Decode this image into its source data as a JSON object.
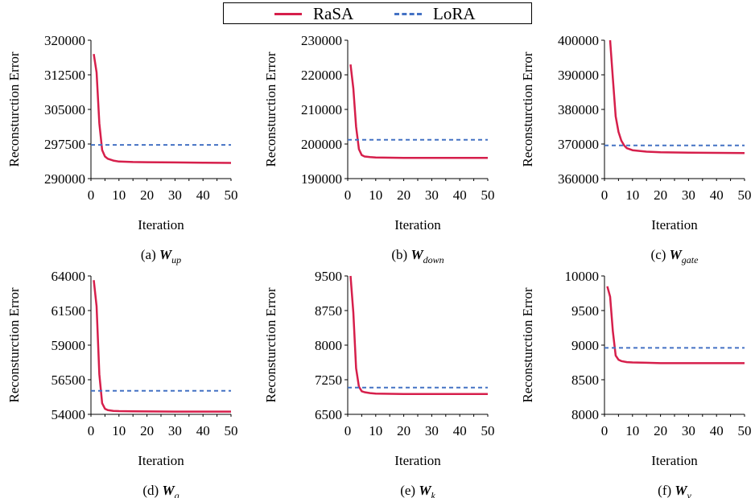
{
  "legend": {
    "items": [
      {
        "label": "RaSA",
        "color": "#d61f4b",
        "style": "solid"
      },
      {
        "label": "LoRA",
        "color": "#4472c4",
        "style": "dashed"
      }
    ]
  },
  "chart_data": [
    {
      "type": "line",
      "caption": {
        "prefix": "(a)",
        "symbol": "W",
        "subscript": "up"
      },
      "xlabel": "Iteration",
      "ylabel": "Reconsturction Error",
      "xlim": [
        0,
        50
      ],
      "ylim": [
        290000,
        320000
      ],
      "xticks": [
        0,
        10,
        20,
        30,
        40,
        50
      ],
      "yticks": [
        290000,
        297500,
        305000,
        312500,
        320000
      ],
      "series": [
        {
          "name": "RaSA",
          "x": [
            1,
            2,
            3,
            4,
            5,
            6,
            8,
            10,
            15,
            20,
            30,
            40,
            50
          ],
          "y": [
            317000,
            313000,
            302000,
            296200,
            294800,
            294300,
            293900,
            293700,
            293600,
            293550,
            293500,
            293450,
            293400
          ]
        },
        {
          "name": "LoRA",
          "x": [
            0,
            50
          ],
          "y": [
            297300,
            297300
          ]
        }
      ]
    },
    {
      "type": "line",
      "caption": {
        "prefix": "(b)",
        "symbol": "W",
        "subscript": "down"
      },
      "xlabel": "Iteration",
      "ylabel": "Reconsturction Error",
      "xlim": [
        0,
        50
      ],
      "ylim": [
        190000,
        230000
      ],
      "xticks": [
        0,
        10,
        20,
        30,
        40,
        50
      ],
      "yticks": [
        190000,
        200000,
        210000,
        220000,
        230000
      ],
      "series": [
        {
          "name": "RaSA",
          "x": [
            1,
            2,
            3,
            4,
            5,
            6,
            8,
            10,
            15,
            20,
            30,
            40,
            50
          ],
          "y": [
            223000,
            216000,
            205000,
            198500,
            196800,
            196400,
            196200,
            196100,
            196050,
            196000,
            196000,
            196000,
            196000
          ]
        },
        {
          "name": "LoRA",
          "x": [
            0,
            50
          ],
          "y": [
            201200,
            201200
          ]
        }
      ]
    },
    {
      "type": "line",
      "caption": {
        "prefix": "(c)",
        "symbol": "W",
        "subscript": "gate"
      },
      "xlabel": "Iteration",
      "ylabel": "Reconsturction Error",
      "xlim": [
        0,
        50
      ],
      "ylim": [
        360000,
        400000
      ],
      "xticks": [
        0,
        10,
        20,
        30,
        40,
        50
      ],
      "yticks": [
        360000,
        370000,
        380000,
        390000,
        400000
      ],
      "series": [
        {
          "name": "RaSA",
          "x": [
            2,
            3,
            4,
            5,
            6,
            7,
            8,
            10,
            15,
            20,
            30,
            40,
            50
          ],
          "y": [
            400000,
            389000,
            378000,
            373500,
            371000,
            369600,
            368800,
            368200,
            367800,
            367600,
            367500,
            367450,
            367400
          ]
        },
        {
          "name": "LoRA",
          "x": [
            0,
            50
          ],
          "y": [
            369600,
            369600
          ]
        }
      ]
    },
    {
      "type": "line",
      "caption": {
        "prefix": "(d)",
        "symbol": "W",
        "subscript": "q"
      },
      "xlabel": "Iteration",
      "ylabel": "Reconsturction Error",
      "xlim": [
        0,
        50
      ],
      "ylim": [
        54000,
        64000
      ],
      "xticks": [
        0,
        10,
        20,
        30,
        40,
        50
      ],
      "yticks": [
        54000,
        56500,
        59000,
        61500,
        64000
      ],
      "series": [
        {
          "name": "RaSA",
          "x": [
            1,
            2,
            3,
            4,
            5,
            6,
            8,
            10,
            15,
            20,
            30,
            40,
            50
          ],
          "y": [
            63700,
            61800,
            56900,
            54800,
            54400,
            54300,
            54250,
            54230,
            54220,
            54210,
            54200,
            54200,
            54200
          ]
        },
        {
          "name": "LoRA",
          "x": [
            0,
            50
          ],
          "y": [
            55700,
            55700
          ]
        }
      ]
    },
    {
      "type": "line",
      "caption": {
        "prefix": "(e)",
        "symbol": "W",
        "subscript": "k"
      },
      "xlabel": "Iteration",
      "ylabel": "Reconsturction Error",
      "xlim": [
        0,
        50
      ],
      "ylim": [
        6500,
        9500
      ],
      "xticks": [
        0,
        10,
        20,
        30,
        40,
        50
      ],
      "yticks": [
        6500,
        7250,
        8000,
        8750,
        9500
      ],
      "series": [
        {
          "name": "RaSA",
          "x": [
            1,
            2,
            3,
            4,
            5,
            6,
            8,
            10,
            15,
            20,
            30,
            40,
            50
          ],
          "y": [
            9500,
            8700,
            7500,
            7100,
            7000,
            6980,
            6960,
            6950,
            6945,
            6940,
            6940,
            6940,
            6940
          ]
        },
        {
          "name": "LoRA",
          "x": [
            0,
            50
          ],
          "y": [
            7080,
            7080
          ]
        }
      ]
    },
    {
      "type": "line",
      "caption": {
        "prefix": "(f)",
        "symbol": "W",
        "subscript": "v"
      },
      "xlabel": "Iteration",
      "ylabel": "Reconsturction Error",
      "xlim": [
        0,
        50
      ],
      "ylim": [
        8000,
        10000
      ],
      "xticks": [
        0,
        10,
        20,
        30,
        40,
        50
      ],
      "yticks": [
        8000,
        8500,
        9000,
        9500,
        10000
      ],
      "series": [
        {
          "name": "RaSA",
          "x": [
            1,
            2,
            3,
            4,
            5,
            6,
            8,
            10,
            15,
            20,
            30,
            40,
            50
          ],
          "y": [
            9850,
            9700,
            9200,
            8850,
            8790,
            8770,
            8755,
            8750,
            8745,
            8740,
            8740,
            8740,
            8740
          ]
        },
        {
          "name": "LoRA",
          "x": [
            0,
            50
          ],
          "y": [
            8960,
            8960
          ]
        }
      ]
    }
  ]
}
